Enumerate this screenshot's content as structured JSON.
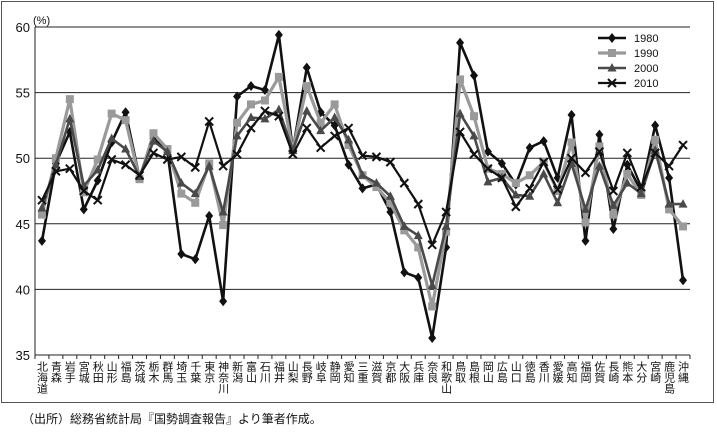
{
  "caption": "（出所）総務省統計局『国勢調査報告』より筆者作成。",
  "chart_data": {
    "type": "line",
    "title": "",
    "xlabel": "",
    "ylabel": "(%)",
    "ylim": [
      35,
      60
    ],
    "yticks": [
      60,
      55,
      50,
      45,
      40,
      35
    ],
    "grid": true,
    "legend": "top-right",
    "categories": [
      "北海道",
      "青森",
      "岩手",
      "宮城",
      "秋田",
      "山形",
      "福島",
      "茨城",
      "栃木",
      "群馬",
      "埼玉",
      "千葉",
      "東京",
      "神奈川",
      "新潟",
      "富山",
      "石川",
      "福井",
      "山梨",
      "長野",
      "岐阜",
      "静岡",
      "愛知",
      "三重",
      "滋賀",
      "京都",
      "大阪",
      "兵庫",
      "奈良",
      "和歌山",
      "鳥取",
      "島根",
      "岡山",
      "広島",
      "山口",
      "徳島",
      "香川",
      "愛媛",
      "高知",
      "福岡",
      "佐賀",
      "長崎",
      "熊本",
      "大分",
      "宮崎",
      "鹿児島",
      "沖縄"
    ],
    "series": [
      {
        "name": "1980",
        "color": "#111111",
        "marker": "diamond",
        "values": [
          43.7,
          49.6,
          52.0,
          46.1,
          48.3,
          51.2,
          53.5,
          48.5,
          51.5,
          50.5,
          42.7,
          42.3,
          45.6,
          39.1,
          54.7,
          55.5,
          55.2,
          59.4,
          50.6,
          56.9,
          53.5,
          52.5,
          49.5,
          47.7,
          48.0,
          45.9,
          41.3,
          40.9,
          36.3,
          43.2,
          58.8,
          56.3,
          50.5,
          49.6,
          48.0,
          50.8,
          51.3,
          48.5,
          53.3,
          43.7,
          51.8,
          44.6,
          49.5,
          47.5,
          52.5,
          48.5,
          40.7
        ]
      },
      {
        "name": "1990",
        "color": "#9a9a9a",
        "marker": "square",
        "values": [
          45.7,
          50.0,
          54.5,
          47.4,
          49.9,
          53.4,
          52.9,
          48.4,
          51.9,
          50.7,
          47.3,
          46.6,
          49.6,
          44.9,
          52.7,
          54.1,
          54.4,
          56.2,
          50.6,
          55.5,
          52.7,
          54.1,
          51.0,
          48.7,
          47.8,
          46.6,
          44.5,
          43.2,
          38.7,
          44.4,
          56.0,
          53.2,
          49.2,
          48.8,
          48.1,
          48.7,
          49.7,
          47.5,
          51.2,
          45.1,
          50.9,
          45.7,
          48.8,
          47.2,
          51.4,
          46.1,
          44.8
        ]
      },
      {
        "name": "2000",
        "color": "#4a4a4a",
        "marker": "triangle",
        "values": [
          46.2,
          49.5,
          53.0,
          47.9,
          49.1,
          51.5,
          50.7,
          48.6,
          51.3,
          50.5,
          48.1,
          47.3,
          49.4,
          45.9,
          51.7,
          53.1,
          53.0,
          53.7,
          50.6,
          53.6,
          52.1,
          53.1,
          51.4,
          48.7,
          48.1,
          47.1,
          44.8,
          44.1,
          40.3,
          44.8,
          53.4,
          51.7,
          48.2,
          48.5,
          47.2,
          47.1,
          48.8,
          46.6,
          49.6,
          46.1,
          49.4,
          46.4,
          48.1,
          47.3,
          50.6,
          46.5,
          46.5
        ]
      },
      {
        "name": "2010",
        "color": "#111111",
        "marker": "x",
        "values": [
          46.8,
          49.0,
          49.2,
          47.5,
          46.8,
          49.9,
          49.5,
          48.7,
          50.4,
          49.9,
          50.1,
          49.3,
          52.8,
          49.4,
          50.3,
          52.3,
          53.6,
          53.2,
          50.3,
          52.3,
          50.8,
          51.7,
          52.3,
          50.2,
          50.1,
          49.7,
          48.1,
          46.5,
          43.4,
          45.9,
          52.0,
          50.3,
          49.2,
          48.5,
          46.3,
          47.7,
          49.7,
          47.6,
          50.0,
          48.9,
          50.5,
          47.5,
          50.4,
          47.8,
          50.4,
          49.4,
          51.0
        ]
      }
    ]
  }
}
